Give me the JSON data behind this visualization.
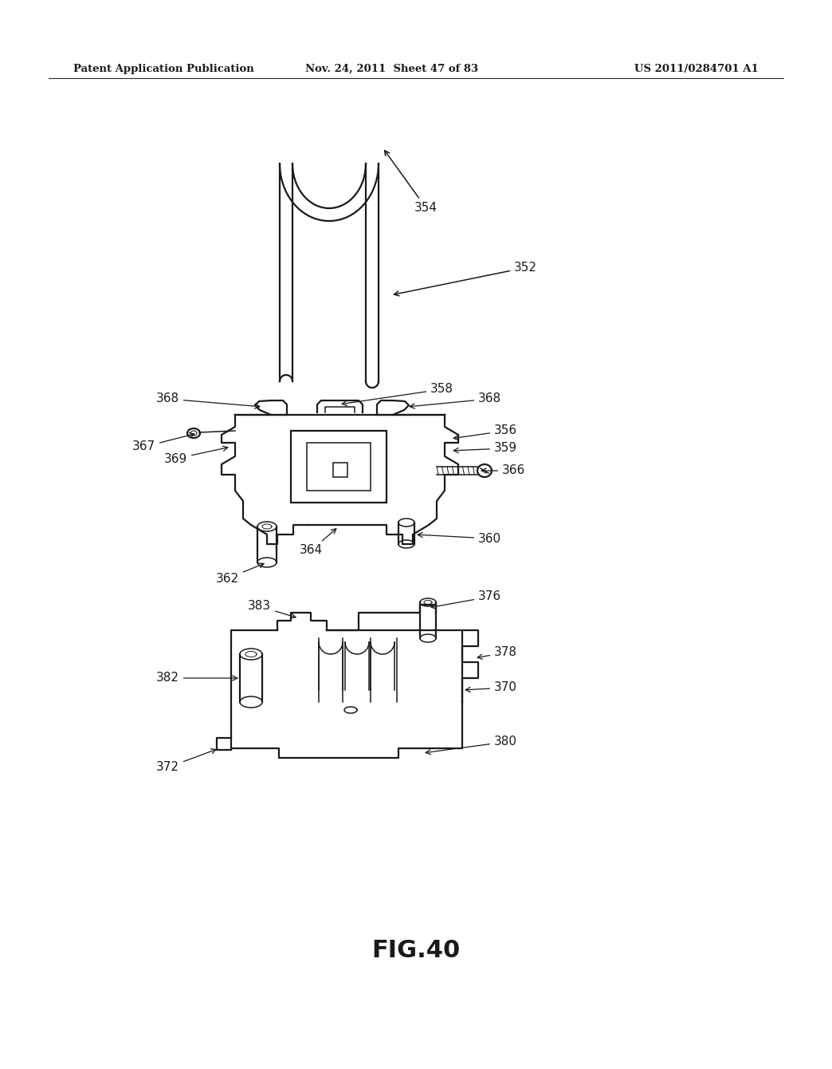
{
  "background_color": "#ffffff",
  "header_left": "Patent Application Publication",
  "header_mid": "Nov. 24, 2011  Sheet 47 of 83",
  "header_right": "US 2011/0284701 A1",
  "figure_label": "FIG.40",
  "text_color": "#1a1a1a",
  "line_color": "#1a1a1a",
  "lw_main": 1.6,
  "lw_thin": 1.1,
  "fs_label": 11,
  "fs_header": 9.5
}
